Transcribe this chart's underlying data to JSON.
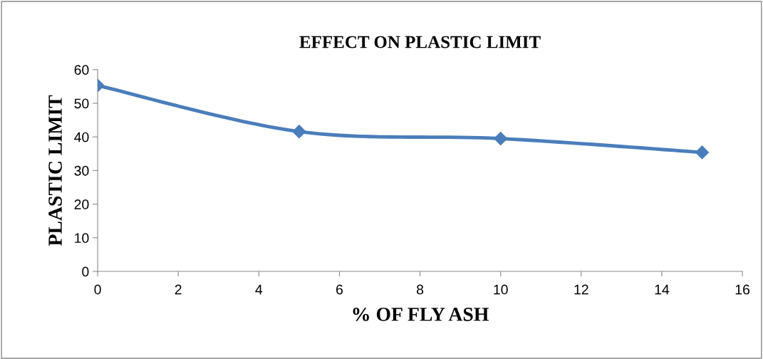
{
  "chart_data": {
    "type": "line",
    "title": "EFFECT ON PLASTIC LIMIT",
    "xlabel": "% OF FLY ASH",
    "ylabel": "PLASTIC LIMIT",
    "x": [
      0,
      5,
      10,
      15
    ],
    "series": [
      {
        "color": "#4a7ebb",
        "values": [
          55.3,
          41.6,
          39.5,
          35.4
        ]
      }
    ],
    "xlim": [
      0,
      16
    ],
    "xticks": [
      0,
      2,
      4,
      6,
      8,
      10,
      12,
      14,
      16
    ],
    "ylim": [
      0,
      60
    ],
    "yticks": [
      0,
      10,
      20,
      30,
      40,
      50,
      60
    ],
    "grid": false,
    "legend": false,
    "marker": "diamond",
    "line_style": "solid"
  }
}
